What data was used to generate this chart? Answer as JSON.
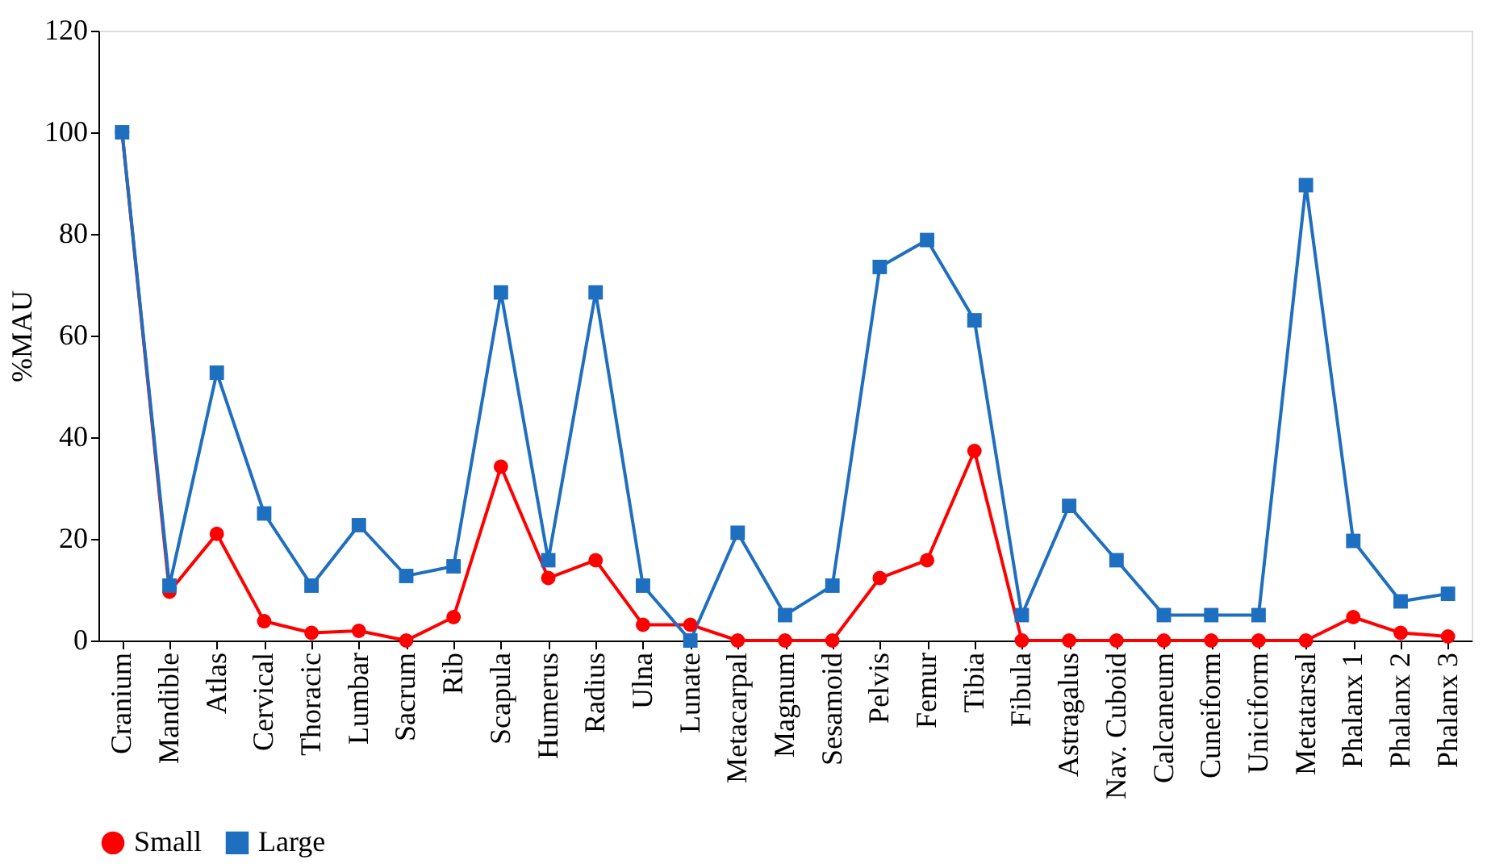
{
  "chart_data": {
    "type": "line",
    "ylabel": "%MAU",
    "categories": [
      "Cranium",
      "Mandible",
      "Atlas",
      "Cervical",
      "Thoracic",
      "Lumbar",
      "Sacrum",
      "Rib",
      "Scapula",
      "Humerus",
      "Radius",
      "Ulna",
      "Lunate",
      "Metacarpal",
      "Magnum",
      "Sesamoid",
      "Pelvis",
      "Femur",
      "Tibia",
      "Fibula",
      "Astragalus",
      "Nav. Cuboid",
      "Calcaneum",
      "Cuneiform",
      "Uniciform",
      "Metatarsal",
      "Phalanx 1",
      "Phalanx 2",
      "Phalanx 3"
    ],
    "series": [
      {
        "name": "Small",
        "color": "#ff0000",
        "marker": "circle",
        "values": [
          100,
          9.6,
          21,
          3.8,
          1.5,
          1.9,
          0,
          4.6,
          34.2,
          12.3,
          15.8,
          3.1,
          3.1,
          0,
          0,
          0,
          12.3,
          15.8,
          37.3,
          0,
          0,
          0,
          0,
          0,
          0,
          0,
          4.6,
          1.5,
          0.8
        ]
      },
      {
        "name": "Large",
        "color": "#1f6fc0",
        "marker": "square",
        "values": [
          100,
          10.8,
          52.7,
          25,
          10.8,
          22.7,
          12.7,
          14.6,
          68.5,
          15.8,
          68.5,
          10.8,
          0,
          21.2,
          5,
          10.8,
          73.5,
          78.8,
          63,
          5,
          26.5,
          15.8,
          5,
          5,
          5,
          89.6,
          19.6,
          7.7,
          9.2
        ]
      }
    ],
    "ylim": [
      0,
      120
    ],
    "yticks": [
      0,
      20,
      40,
      60,
      80,
      100,
      120
    ],
    "grid": false,
    "legend": "bottom",
    "line_style": "solid"
  }
}
